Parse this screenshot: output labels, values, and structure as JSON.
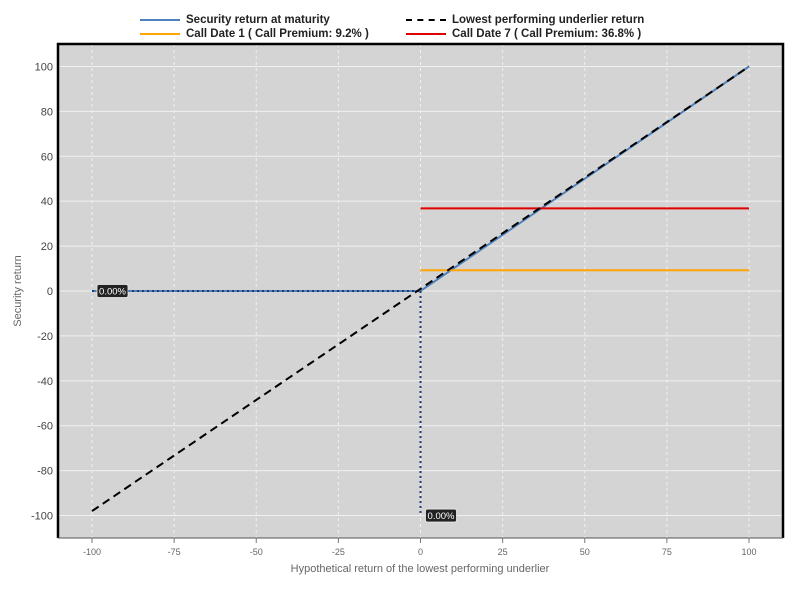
{
  "chart_data": {
    "type": "line",
    "title": "",
    "xlabel": "Hypothetical return of the lowest performing underlier",
    "ylabel": "Security return",
    "xlim": [
      -100,
      100
    ],
    "ylim": [
      -110,
      110
    ],
    "x_ticks": [
      -100,
      -75,
      -50,
      -25,
      0,
      25,
      50,
      75,
      100
    ],
    "y_ticks": [
      -100,
      -80,
      -60,
      -40,
      -20,
      0,
      20,
      40,
      60,
      80,
      100
    ],
    "grid": true,
    "legend_position": "top",
    "series": [
      {
        "name": "Security return at maturity",
        "color": "#4f81bd",
        "style": "solid",
        "x": [
          -100,
          0,
          100
        ],
        "y": [
          0,
          0,
          100
        ]
      },
      {
        "name": "Lowest performing underlier return",
        "color": "#000000",
        "style": "dashed",
        "x": [
          -100,
          100
        ],
        "y": [
          -98,
          100
        ]
      },
      {
        "name": "Call Date 1 ( Call Premium: 9.2% )",
        "color": "#ffa500",
        "style": "solid",
        "x": [
          0,
          100
        ],
        "y": [
          9.2,
          9.2
        ]
      },
      {
        "name": "Call Date 7 ( Call Premium: 36.8% )",
        "color": "#e00000",
        "style": "solid",
        "x": [
          0,
          100
        ],
        "y": [
          36.8,
          36.8
        ]
      }
    ],
    "reference_lines": [
      {
        "x": [
          -100,
          0
        ],
        "y": [
          0,
          0
        ],
        "style": "dotted",
        "color": "#1f3a70"
      },
      {
        "x": [
          0,
          0
        ],
        "y": [
          0,
          -100
        ],
        "style": "dotted",
        "color": "#1f3a70"
      }
    ],
    "annotations": [
      {
        "x": -100,
        "y": 0,
        "text": "0.00%"
      },
      {
        "x": 0,
        "y": -100,
        "text": "0.00%"
      }
    ]
  }
}
